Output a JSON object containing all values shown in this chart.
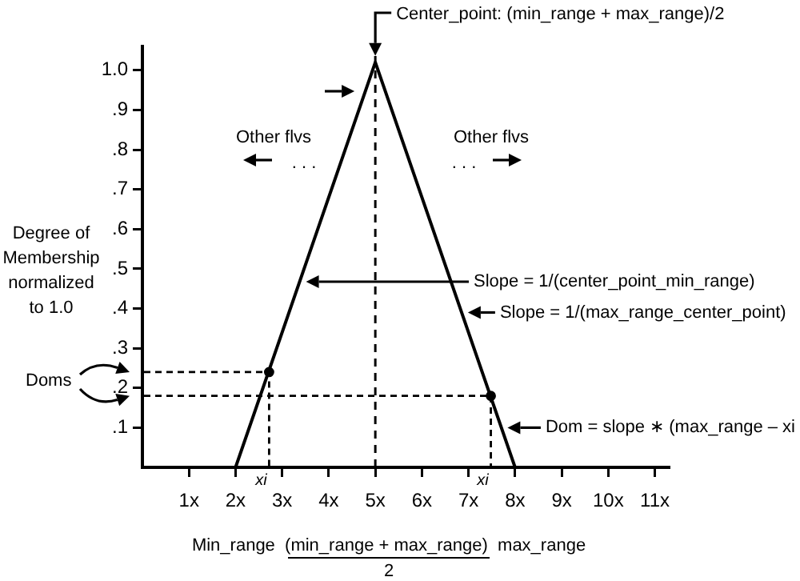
{
  "chart_data": {
    "type": "line",
    "xlabel": "Min_range  (min_range + max_range)  max_range",
    "ylabel": "Degree of\nMembership\nnormalized\nto 1.0",
    "series": [
      {
        "color": "#000000",
        "line_style": "solid",
        "x": [
          2,
          5,
          8
        ],
        "values": [
          0,
          1.02,
          0
        ]
      },
      {
        "type": "scatter",
        "color": "#000000",
        "marker": "circle",
        "x": [
          2.72,
          7.48
        ],
        "values": [
          0.24,
          0.18
        ]
      }
    ],
    "ref_lines": [
      {
        "axis": "x",
        "value": 5,
        "color": "#000000",
        "line_style": "dashed"
      }
    ],
    "xlim": [
      0,
      11.3
    ],
    "ylim": [
      0,
      1.06
    ],
    "xticks": [
      {
        "value": 1,
        "label": "1x"
      },
      {
        "value": 2,
        "label": "2x"
      },
      {
        "value": 3,
        "label": "3x"
      },
      {
        "value": 4,
        "label": "4x"
      },
      {
        "value": 5,
        "label": "5x"
      },
      {
        "value": 6,
        "label": "6x"
      },
      {
        "value": 7,
        "label": "7x"
      },
      {
        "value": 8,
        "label": "8x"
      },
      {
        "value": 9,
        "label": "9x"
      },
      {
        "value": 10,
        "label": "10x"
      },
      {
        "value": 11,
        "label": "11x"
      }
    ],
    "yticks": [
      {
        "value": 0.1,
        "label": ".1"
      },
      {
        "value": 0.2,
        "label": ".2"
      },
      {
        "value": 0.3,
        "label": ".3"
      },
      {
        "value": 0.4,
        "label": ".4"
      },
      {
        "value": 0.5,
        "label": ".5"
      },
      {
        "value": 0.6,
        "label": ".6"
      },
      {
        "value": 0.7,
        "label": ".7"
      },
      {
        "value": 0.8,
        "label": ".8"
      },
      {
        "value": 0.9,
        "label": ".9"
      },
      {
        "value": 1,
        "label": "1.0"
      }
    ],
    "legend": false,
    "marker": "none",
    "annotations": [
      {
        "text": "Center_point: (min_range + max_range)/2",
        "x": 5,
        "y": 1.02
      },
      "Other flvs",
      ". . .",
      "Other flvs",
      ". . .",
      "Slope = 1/(center_point_min_range)",
      {
        "text": "Slope = 1/(max_range_center_point)",
        "x": 6.85,
        "y": 0.39
      },
      {
        "text": "Dom = slope ∗ (max_range – xi",
        "x": 7.7,
        "y": 0.1
      },
      "Doms",
      "xi",
      "xi",
      "2"
    ]
  }
}
